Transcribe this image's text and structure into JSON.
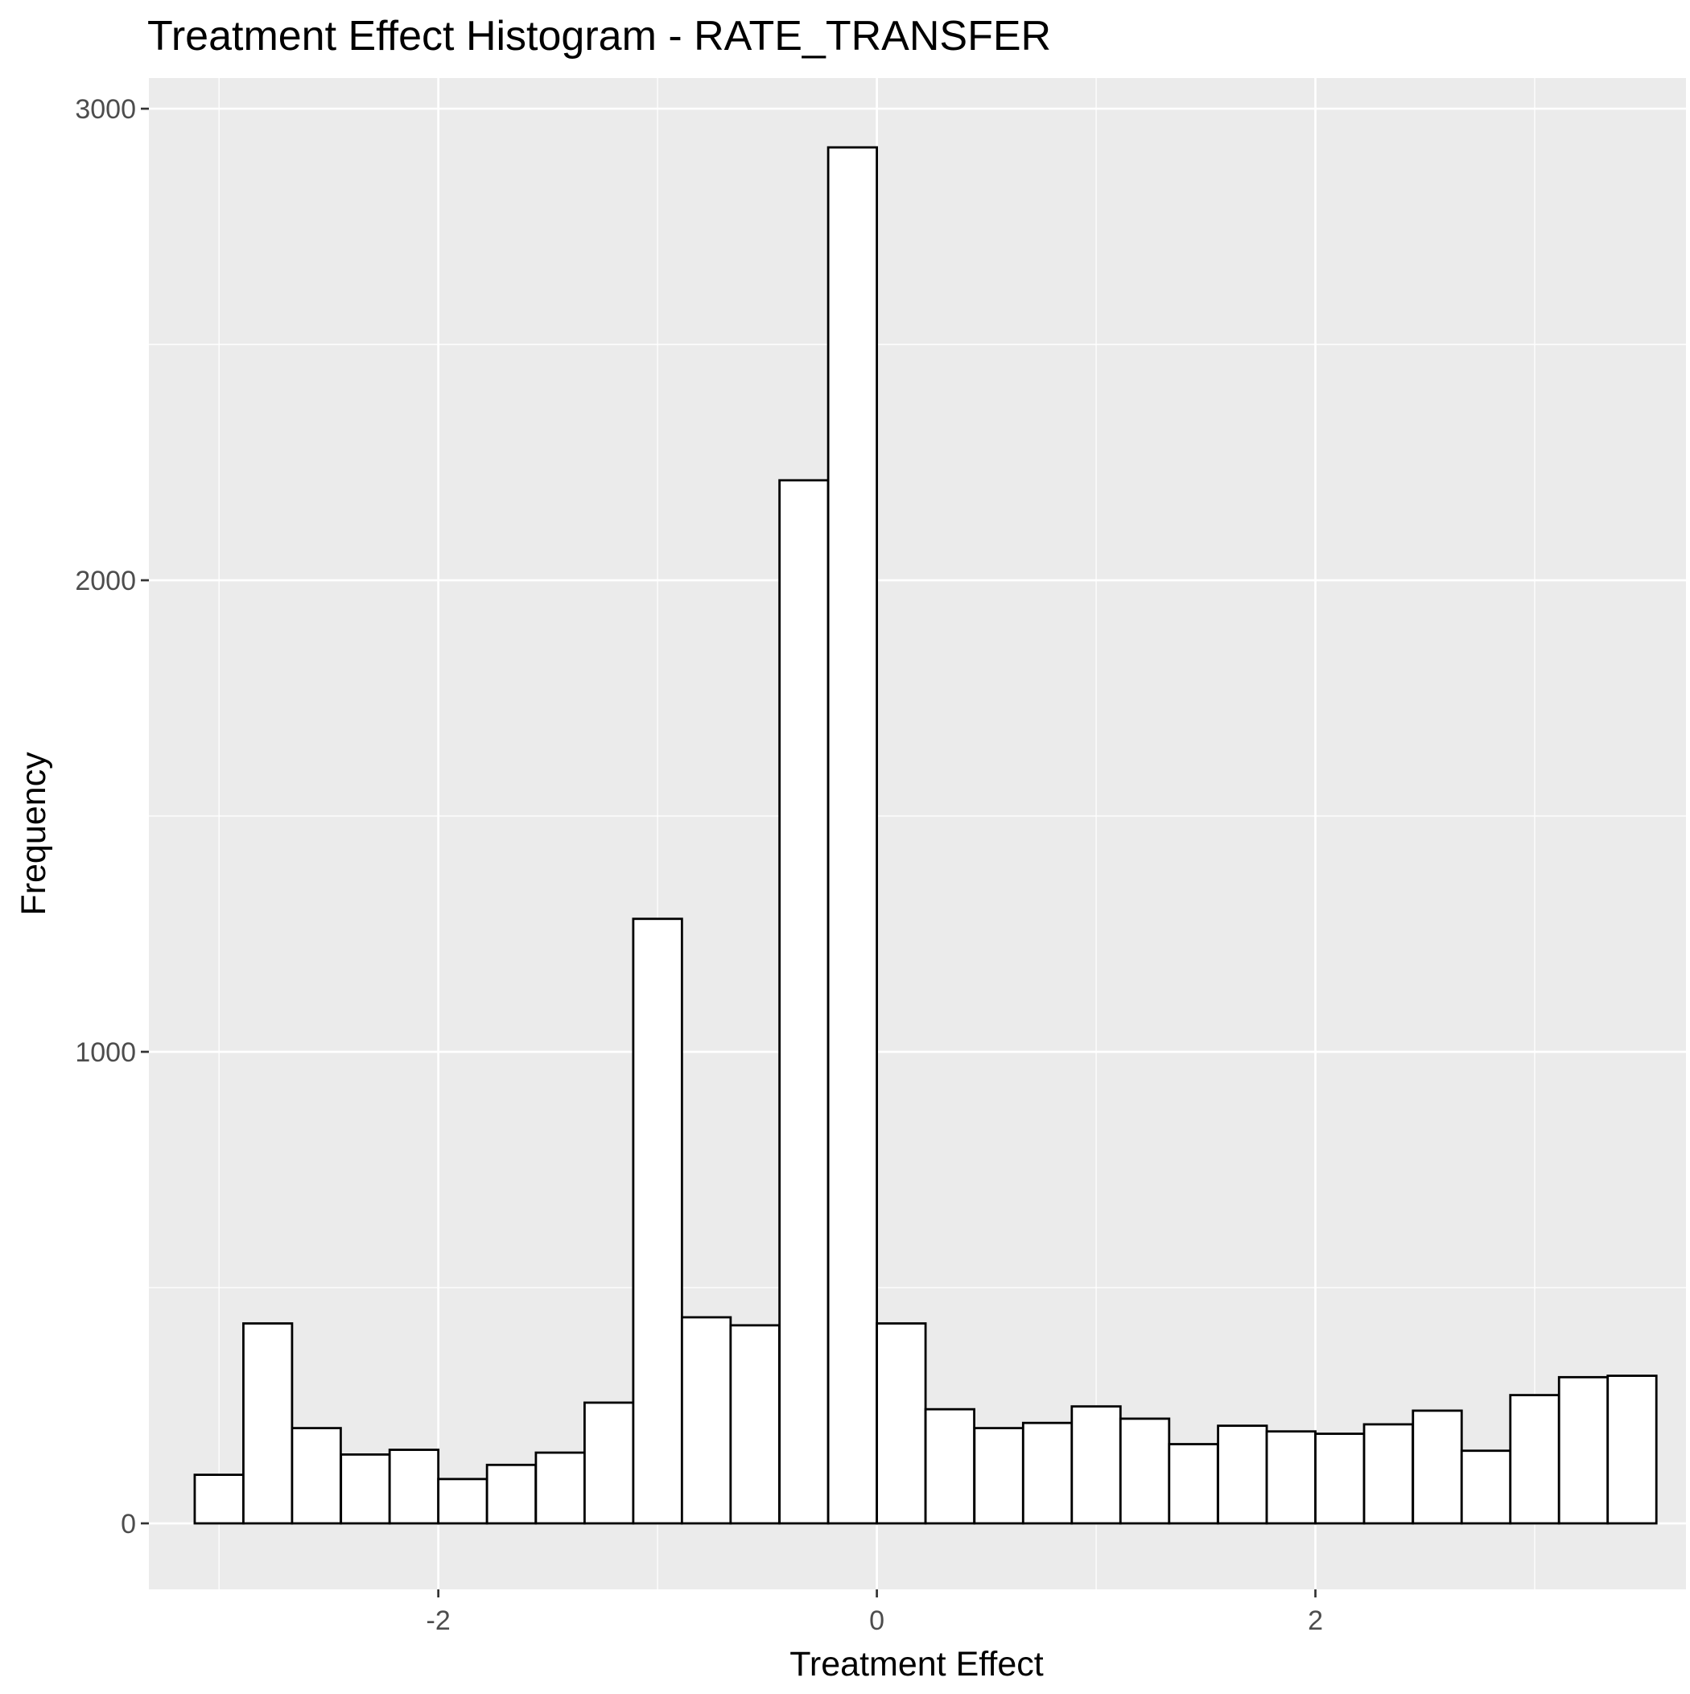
{
  "chart_data": {
    "type": "bar",
    "title": "Treatment Effect Histogram -  RATE_TRANSFER",
    "xlabel": "Treatment Effect",
    "ylabel": "Frequency",
    "xlim": [
      -3.32,
      3.69
    ],
    "ylim": [
      -140,
      3065
    ],
    "x_ticks": [
      -2,
      0,
      2
    ],
    "x_tick_labels": [
      "-2",
      "0",
      "2"
    ],
    "x_minor_ticks": [
      -3,
      -1,
      1,
      3
    ],
    "y_ticks": [
      0,
      1000,
      2000,
      3000
    ],
    "y_tick_labels": [
      "0",
      "1000",
      "2000",
      "3000"
    ],
    "y_minor_ticks": [
      500,
      1500,
      2500
    ],
    "grid": true,
    "bin_width": 0.222,
    "bins": [
      {
        "x": -3.0,
        "value": 103
      },
      {
        "x": -2.778,
        "value": 424
      },
      {
        "x": -2.556,
        "value": 202
      },
      {
        "x": -2.333,
        "value": 146
      },
      {
        "x": -2.111,
        "value": 156
      },
      {
        "x": -1.889,
        "value": 94
      },
      {
        "x": -1.667,
        "value": 124
      },
      {
        "x": -1.444,
        "value": 150
      },
      {
        "x": -1.222,
        "value": 256
      },
      {
        "x": -1.0,
        "value": 1282
      },
      {
        "x": -0.778,
        "value": 437
      },
      {
        "x": -0.556,
        "value": 420
      },
      {
        "x": -0.333,
        "value": 2212
      },
      {
        "x": -0.111,
        "value": 2918
      },
      {
        "x": 0.111,
        "value": 424
      },
      {
        "x": 0.333,
        "value": 242
      },
      {
        "x": 0.556,
        "value": 202
      },
      {
        "x": 0.778,
        "value": 213
      },
      {
        "x": 1.0,
        "value": 248
      },
      {
        "x": 1.222,
        "value": 222
      },
      {
        "x": 1.444,
        "value": 168
      },
      {
        "x": 1.667,
        "value": 207
      },
      {
        "x": 1.889,
        "value": 195
      },
      {
        "x": 2.111,
        "value": 190
      },
      {
        "x": 2.333,
        "value": 210
      },
      {
        "x": 2.556,
        "value": 239
      },
      {
        "x": 2.778,
        "value": 154
      },
      {
        "x": 3.0,
        "value": 272
      },
      {
        "x": 3.222,
        "value": 310
      },
      {
        "x": 3.444,
        "value": 313
      }
    ],
    "colors": {
      "panel_background": "#ebebeb",
      "grid_line": "#ffffff",
      "bar_fill": "#ffffff",
      "bar_outline": "#000000",
      "tick_label": "#4d4d4d",
      "tick_mark": "#333333",
      "text": "#000000"
    }
  }
}
